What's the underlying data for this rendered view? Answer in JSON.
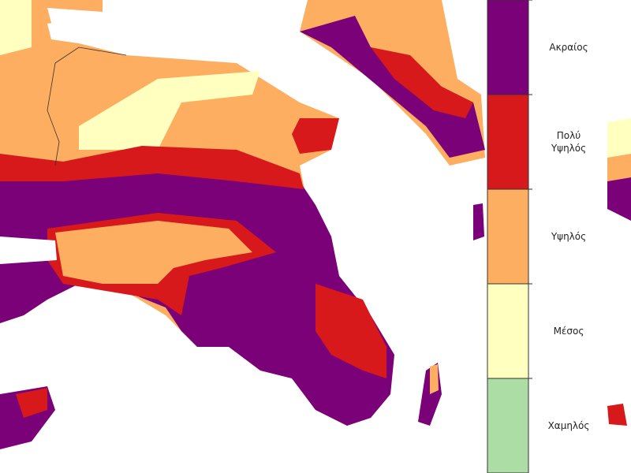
{
  "legend": {
    "items": [
      {
        "label": "Ακραίος",
        "color": "#7a0177"
      },
      {
        "label": "Πολύ\nΥψηλός",
        "color": "#d7191c"
      },
      {
        "label": "Υψηλός",
        "color": "#fdae61"
      },
      {
        "label": "Μέσος",
        "color": "#ffffbf"
      },
      {
        "label": "Χαμηλός",
        "color": "#abdda4"
      }
    ]
  }
}
